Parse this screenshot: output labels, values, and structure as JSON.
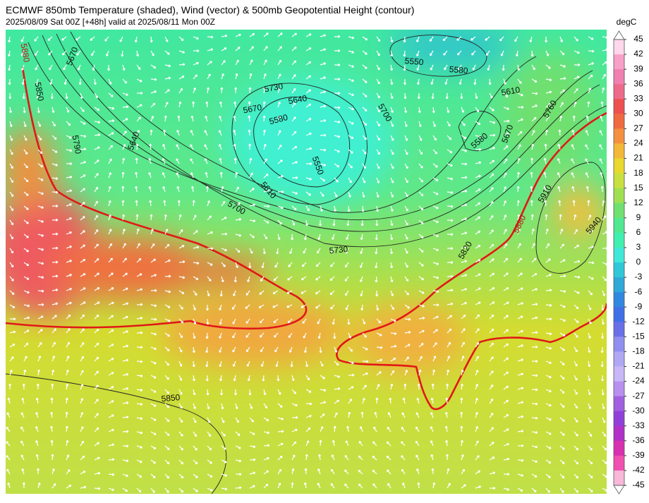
{
  "header": {
    "title": "ECMWF 850mb Temperature (shaded), Wind (vector) & 500mb Geopotential Height (contour)",
    "subtitle": "2025/08/09 Sat 00Z [+48h] valid at 2025/08/11 Mon 00Z"
  },
  "colorbar": {
    "unit": "degC",
    "ticks": [
      45,
      42,
      39,
      36,
      33,
      30,
      27,
      24,
      21,
      18,
      15,
      12,
      9,
      6,
      3,
      0,
      -3,
      -6,
      -9,
      -12,
      -15,
      -18,
      -21,
      -24,
      -27,
      -30,
      -33,
      -36,
      -39,
      -42,
      -45
    ],
    "colors": [
      "#ffd8ec",
      "#f8a0c8",
      "#f080b0",
      "#ee6a8a",
      "#ee5050",
      "#f06a40",
      "#f49040",
      "#f4b838",
      "#e8d830",
      "#c8e040",
      "#a0e050",
      "#70e070",
      "#50e890",
      "#40f0b0",
      "#40e8d8",
      "#30c8d8",
      "#30a8d8",
      "#3088e0",
      "#4070e8",
      "#6a70e8",
      "#9090f0",
      "#b0a8f4",
      "#c8b8f8",
      "#b890f0",
      "#a060e0",
      "#9040d8",
      "#b030c8",
      "#d830b0",
      "#f050b0",
      "#f8b8d8"
    ]
  },
  "contour_labels": [
    "5880",
    "5850",
    "5790",
    "5670",
    "5640",
    "5730",
    "5670",
    "5640",
    "5580",
    "5550",
    "5610",
    "5700",
    "5700",
    "5550",
    "5580",
    "5610",
    "5580",
    "5670",
    "5760",
    "5910",
    "5880",
    "5940",
    "5820",
    "5730",
    "5850"
  ]
}
